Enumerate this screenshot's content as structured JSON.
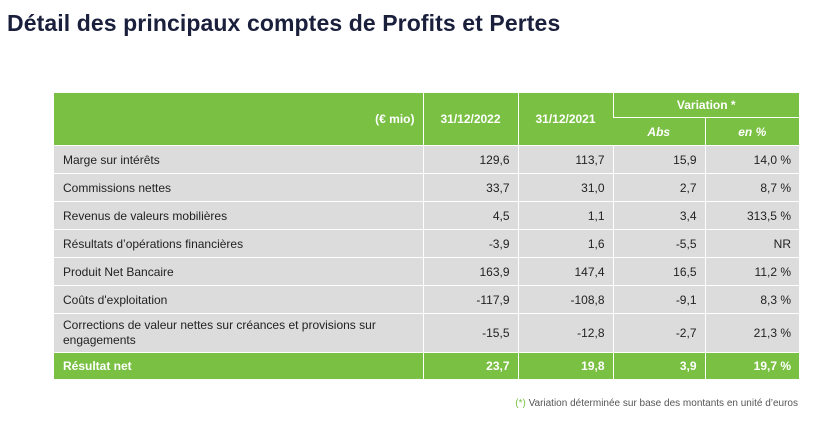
{
  "title": "Détail des principaux comptes de Profits et Pertes",
  "table": {
    "header": {
      "unit": "(€ mio)",
      "year1": "31/12/2022",
      "year2": "31/12/2021",
      "variation": "Variation *",
      "abs": "Abs",
      "pct": "en %"
    },
    "rows": [
      {
        "label": "Marge sur intérêts",
        "y2022": "129,6",
        "y2021": "113,7",
        "abs": "15,9",
        "pct": "14,0 %"
      },
      {
        "label": "Commissions nettes",
        "y2022": "33,7",
        "y2021": "31,0",
        "abs": "2,7",
        "pct": "8,7 %"
      },
      {
        "label": "Revenus de valeurs mobilières",
        "y2022": "4,5",
        "y2021": "1,1",
        "abs": "3,4",
        "pct": "313,5 %"
      },
      {
        "label": "Résultats d’opérations financières",
        "y2022": "-3,9",
        "y2021": "1,6",
        "abs": "-5,5",
        "pct": "NR"
      },
      {
        "label": "Produit Net Bancaire",
        "y2022": "163,9",
        "y2021": "147,4",
        "abs": "16,5",
        "pct": "11,2 %"
      },
      {
        "label": "Coûts d'exploitation",
        "y2022": "-117,9",
        "y2021": "-108,8",
        "abs": "-9,1",
        "pct": "8,3 %"
      },
      {
        "label": "Corrections de valeur nettes sur créances et provisions sur engagements",
        "y2022": "-15,5",
        "y2021": "-12,8",
        "abs": "-2,7",
        "pct": "21,3 %"
      }
    ],
    "total": {
      "label": "Résultat net",
      "y2022": "23,7",
      "y2021": "19,8",
      "abs": "3,9",
      "pct": "19,7 %"
    }
  },
  "footnote": {
    "marker": "(*)",
    "text": " Variation déterminée sur base des montants en unité d’euros"
  },
  "colors": {
    "accent": "#7ac143",
    "row_bg": "#dcdcdc",
    "title": "#1a1f3c"
  }
}
